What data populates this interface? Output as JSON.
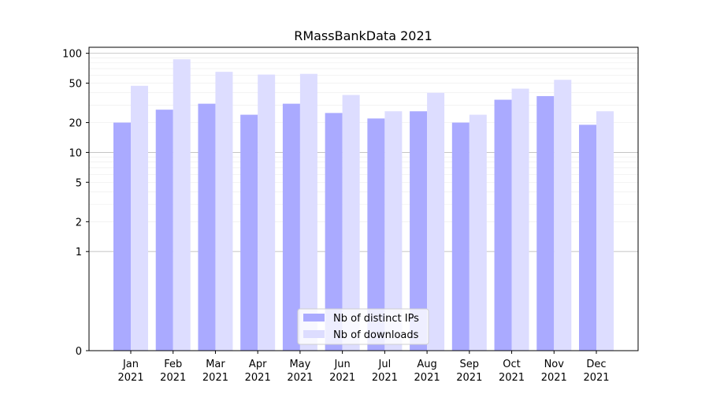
{
  "chart_data": {
    "type": "bar",
    "title": "RMassBankData 2021",
    "xlabel": "",
    "ylabel": "",
    "yscale": "symlog",
    "ylim": [
      0,
      115
    ],
    "yticks": [
      0,
      1,
      2,
      5,
      10,
      20,
      50,
      100
    ],
    "ytick_labels": [
      "0",
      "1",
      "2",
      "5",
      "10",
      "20",
      "50",
      "100"
    ],
    "categories": [
      "Jan",
      "Feb",
      "Mar",
      "Apr",
      "May",
      "Jun",
      "Jul",
      "Aug",
      "Sep",
      "Oct",
      "Nov",
      "Dec"
    ],
    "category_sublabels": [
      "2021",
      "2021",
      "2021",
      "2021",
      "2021",
      "2021",
      "2021",
      "2021",
      "2021",
      "2021",
      "2021",
      "2021"
    ],
    "series": [
      {
        "name": "Nb of distinct IPs",
        "color": "#aaaaff",
        "values": [
          20,
          27,
          31,
          24,
          31,
          25,
          22,
          26,
          20,
          34,
          37,
          19
        ]
      },
      {
        "name": "Nb of downloads",
        "color": "#ddddff",
        "values": [
          47,
          87,
          65,
          61,
          62,
          38,
          26,
          40,
          24,
          44,
          54,
          26
        ]
      }
    ],
    "grid": "y",
    "legend_position": "lower-center"
  }
}
